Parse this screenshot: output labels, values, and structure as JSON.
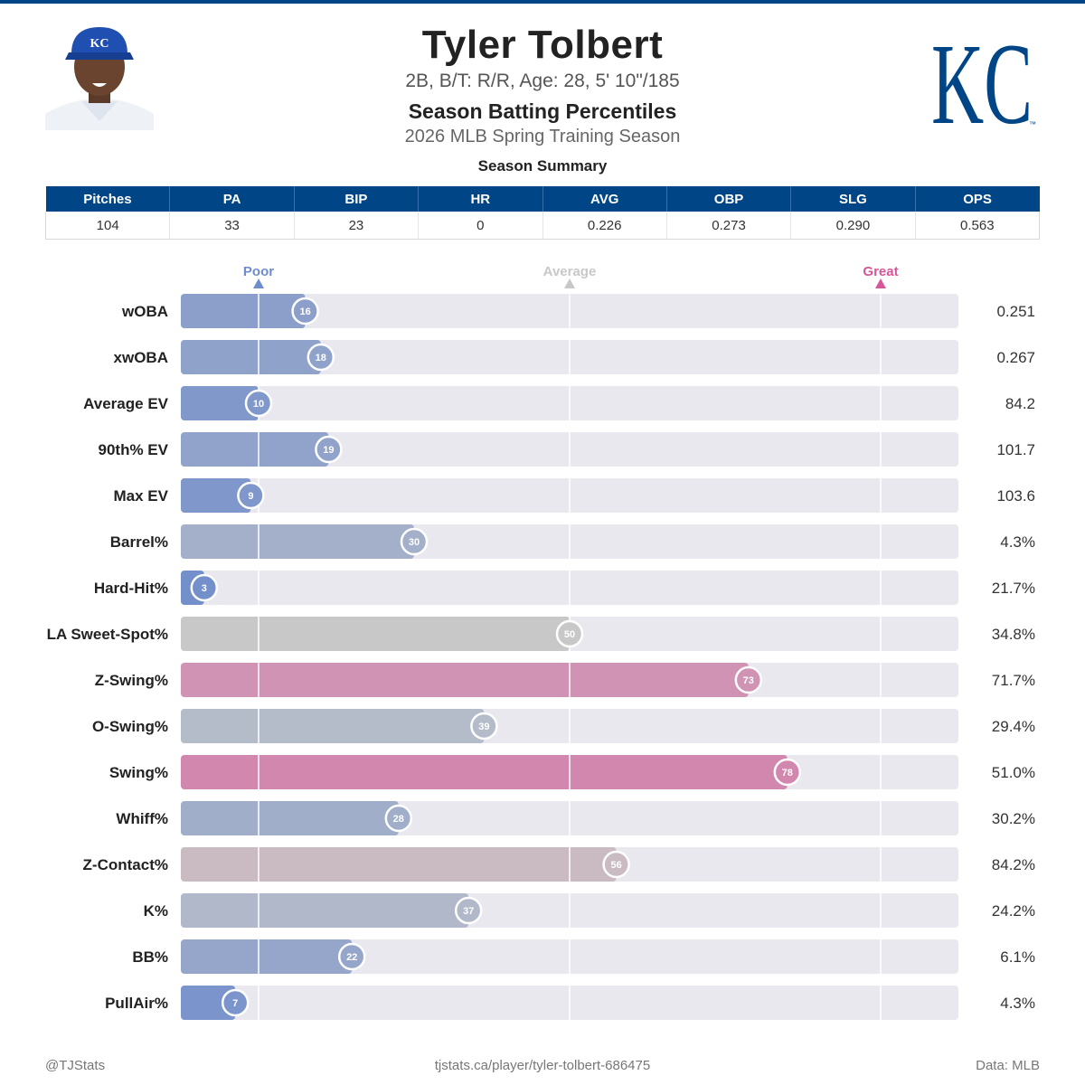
{
  "colors": {
    "team_primary": "#004687",
    "poor": "#6f8ccb",
    "average": "#c8c8c8",
    "great": "#d9559a"
  },
  "header": {
    "player_name": "Tyler Tolbert",
    "player_info": "2B, B/T: R/R, Age: 28, 5' 10\"/185",
    "title": "Season Batting Percentiles",
    "subtitle": "2026 MLB Spring Training Season"
  },
  "summary": {
    "title": "Season Summary",
    "columns": [
      "Pitches",
      "PA",
      "BIP",
      "HR",
      "AVG",
      "OBP",
      "SLG",
      "OPS"
    ],
    "values": [
      "104",
      "33",
      "23",
      "0",
      "0.226",
      "0.273",
      "0.290",
      "0.563"
    ]
  },
  "chart_data": {
    "type": "bar",
    "orientation": "horizontal",
    "xlim": [
      0,
      100
    ],
    "reference_markers": [
      {
        "label": "Poor",
        "value": 10
      },
      {
        "label": "Average",
        "value": 50
      },
      {
        "label": "Great",
        "value": 90
      }
    ],
    "categories": [
      "wOBA",
      "xwOBA",
      "Average EV",
      "90th% EV",
      "Max EV",
      "Barrel%",
      "Hard-Hit%",
      "LA Sweet-Spot%",
      "Z-Swing%",
      "O-Swing%",
      "Swing%",
      "Whiff%",
      "Z-Contact%",
      "K%",
      "BB%",
      "PullAir%"
    ],
    "percentiles": [
      16,
      18,
      10,
      19,
      9,
      30,
      3,
      50,
      73,
      39,
      78,
      28,
      56,
      37,
      22,
      7
    ],
    "stat_values": [
      "0.251",
      "0.267",
      "84.2",
      "101.7",
      "103.6",
      "4.3%",
      "21.7%",
      "34.8%",
      "71.7%",
      "29.4%",
      "51.0%",
      "30.2%",
      "84.2%",
      "24.2%",
      "6.1%",
      "4.3%"
    ]
  },
  "footer": {
    "left": "@TJStats",
    "center": "tjstats.ca/player/tyler-tolbert-686475",
    "right": "Data: MLB"
  }
}
